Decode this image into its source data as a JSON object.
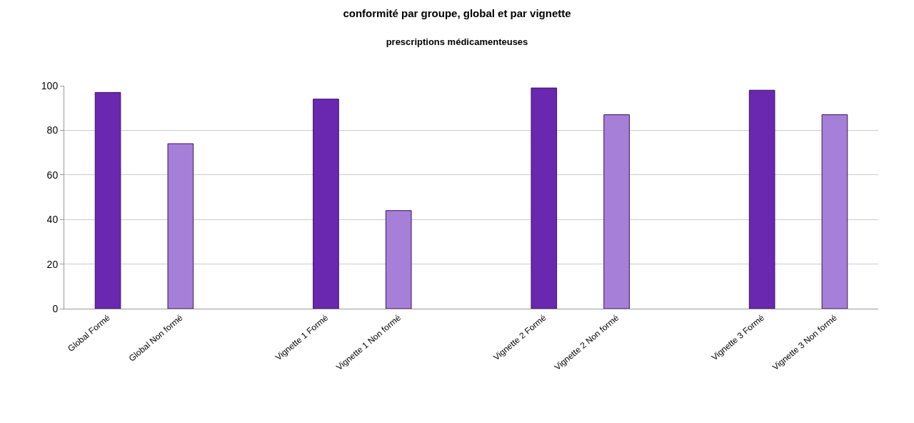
{
  "chart_data": {
    "type": "bar",
    "title": "conformité par groupe, global et par vignette",
    "subtitle": "prescriptions médicamenteuses",
    "categories": [
      "Global Formé",
      "Global Non formé",
      null,
      "Vignette 1 Formé",
      "Vignette 1 Non formé",
      null,
      "Vignette 2 Formé",
      "Vignette 2 Non formé",
      null,
      "Vignette 3 Formé",
      "Vignette 3 Non formé"
    ],
    "values": [
      97,
      74,
      null,
      94,
      44,
      null,
      99,
      87,
      null,
      98,
      87
    ],
    "colors": [
      "#6a28b0",
      "#a67fd8",
      "#6a28b0",
      "#6a28b0",
      "#a67fd8",
      "#6a28b0",
      "#6a28b0",
      "#a67fd8",
      "#6a28b0",
      "#6a28b0",
      "#a67fd8"
    ],
    "ylim": [
      0,
      100
    ],
    "yticks": [
      0,
      20,
      40,
      60,
      80,
      100
    ],
    "grid": "y"
  }
}
